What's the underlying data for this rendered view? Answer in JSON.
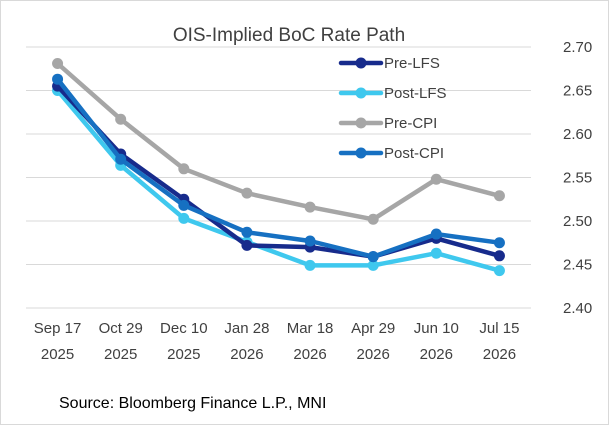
{
  "chart_data": {
    "type": "line",
    "title": "OIS-Implied BoC Rate Path",
    "categories": [
      [
        "Sep 17",
        "2025"
      ],
      [
        "Oct 29",
        "2025"
      ],
      [
        "Dec 10",
        "2025"
      ],
      [
        "Jan 28",
        "2026"
      ],
      [
        "Mar 18",
        "2026"
      ],
      [
        "Apr 29",
        "2026"
      ],
      [
        "Jun 10",
        "2026"
      ],
      [
        "Jul 15",
        "2026"
      ]
    ],
    "ylim": [
      2.4,
      2.7
    ],
    "yticks": [
      2.4,
      2.45,
      2.5,
      2.55,
      2.6,
      2.65,
      2.7
    ],
    "ytick_labels": [
      "2.40",
      "2.45",
      "2.50",
      "2.55",
      "2.60",
      "2.65",
      "2.70"
    ],
    "y_axis_side": "right",
    "grid": true,
    "legend_position": "top-right",
    "series": [
      {
        "name": "Pre-CPI",
        "color": "#a6a6a6",
        "values": [
          2.681,
          2.617,
          2.56,
          2.532,
          2.516,
          2.502,
          2.548,
          2.529
        ]
      },
      {
        "name": "Post-LFS",
        "color": "#3fc8ee",
        "values": [
          2.65,
          2.564,
          2.503,
          2.476,
          2.449,
          2.449,
          2.463,
          2.443
        ]
      },
      {
        "name": "Pre-LFS",
        "color": "#172b8c",
        "values": [
          2.655,
          2.577,
          2.525,
          2.472,
          2.47,
          2.459,
          2.48,
          2.46
        ]
      },
      {
        "name": "Post-CPI",
        "color": "#1670c2",
        "values": [
          2.663,
          2.571,
          2.518,
          2.487,
          2.477,
          2.459,
          2.485,
          2.475
        ]
      }
    ],
    "legend_order": [
      "Pre-LFS",
      "Post-LFS",
      "Pre-CPI",
      "Post-CPI"
    ],
    "source": "Source: Bloomberg Finance L.P., MNI"
  }
}
